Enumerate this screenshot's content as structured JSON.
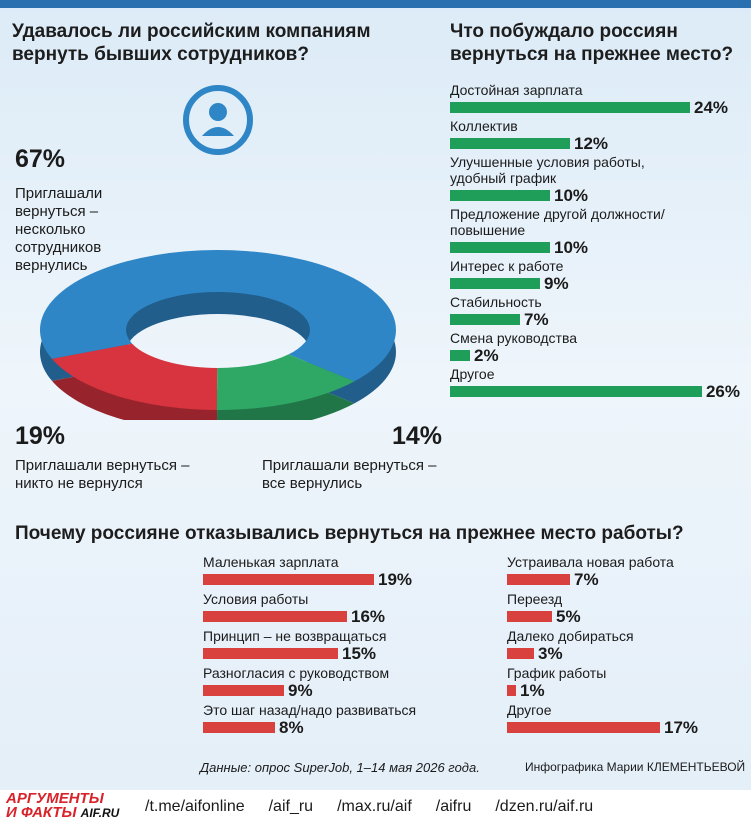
{
  "chart_data": [
    {
      "type": "pie",
      "title": "Удавалось ли российским компаниям вернуть бывших сотрудников?",
      "categories": [
        "Приглашали вернуться – несколько сотрудников вернулись",
        "Приглашали вернуться – никто не вернулся",
        "Приглашали вернуться – все вернулись"
      ],
      "values": [
        67,
        19,
        14
      ],
      "value_labels": [
        "67%",
        "19%",
        "14%"
      ],
      "colors": [
        "#2f86c6",
        "#d8343f",
        "#2fa865"
      ]
    },
    {
      "type": "bar",
      "title": "Что побуждало россиян вернуться на прежнее место?",
      "categories": [
        "Достойная зарплата",
        "Коллектив",
        "Улучшенные условия работы, удобный график",
        "Предложение другой должности/повышение",
        "Интерес к работе",
        "Стабильность",
        "Смена руководства",
        "Другое"
      ],
      "values": [
        24,
        12,
        10,
        10,
        9,
        7,
        2,
        26
      ],
      "value_labels": [
        "24%",
        "12%",
        "10%",
        "10%",
        "9%",
        "7%",
        "2%",
        "26%"
      ],
      "color": "#1f9e5a"
    },
    {
      "type": "bar",
      "title": "Почему россияне отказывались вернуться на прежнее место работы?",
      "categories": [
        "Маленькая зарплата",
        "Условия работы",
        "Принцип – не возвращаться",
        "Разногласия с руководством",
        "Это шаг назад/надо развиваться"
      ],
      "values": [
        19,
        16,
        15,
        9,
        8
      ],
      "value_labels": [
        "19%",
        "16%",
        "15%",
        "9%",
        "8%"
      ],
      "color": "#d9413f"
    },
    {
      "type": "bar",
      "categories": [
        "Устраивала новая работа",
        "Переезд",
        "Далеко добираться",
        "График работы",
        "Другое"
      ],
      "values": [
        7,
        5,
        3,
        1,
        17
      ],
      "value_labels": [
        "7%",
        "5%",
        "3%",
        "1%",
        "17%"
      ],
      "color": "#d9413f"
    }
  ],
  "footer": {
    "source": "Данные: опрос SuperJob, 1–14 мая 2026 года.",
    "credit": "Инфографика Марии КЛЕМЕНТЬЕВОЙ",
    "logo": [
      "АРГУМЕНТЫ",
      "И ФАКТЫ",
      "AIF.RU"
    ],
    "links": [
      "/t.me/aifonline",
      "/aif_ru",
      "/max.ru/aif",
      "/aifru",
      "/dzen.ru/aif.ru"
    ]
  }
}
